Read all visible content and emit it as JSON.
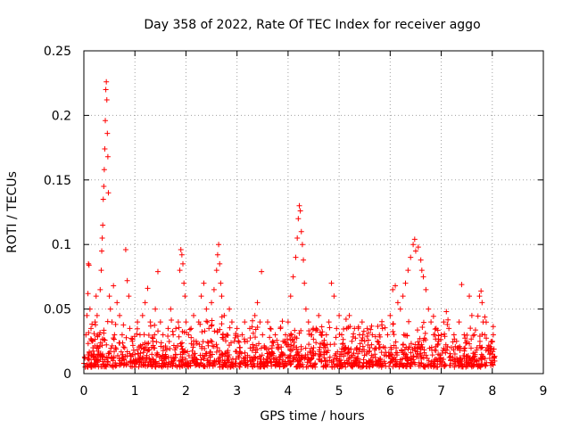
{
  "chart_data": {
    "type": "scatter",
    "title": "Day 358 of 2022, Rate Of TEC Index for receiver aggo",
    "xlabel": "GPS time / hours",
    "ylabel": "ROTI / TECUs",
    "xlim": [
      0,
      9
    ],
    "ylim": [
      0,
      0.25
    ],
    "xticks": [
      0,
      1,
      2,
      3,
      4,
      5,
      6,
      7,
      8,
      9
    ],
    "xtick_labels": [
      "0",
      "1",
      "2",
      "3",
      "4",
      "5",
      "6",
      "7",
      "8",
      "9"
    ],
    "yticks": [
      0,
      0.05,
      0.1,
      0.15,
      0.2,
      0.25
    ],
    "ytick_labels": [
      "0",
      "0.05",
      "0.1",
      "0.15",
      "0.2",
      "0.25"
    ],
    "grid": true,
    "marker": "+",
    "color": "#ff0000",
    "series": [
      {
        "name": "ROTI",
        "points": [
          [
            0.02,
            0.012
          ],
          [
            0.04,
            0.03
          ],
          [
            0.06,
            0.045
          ],
          [
            0.08,
            0.062
          ],
          [
            0.09,
            0.085
          ],
          [
            0.1,
            0.084
          ],
          [
            0.12,
            0.05
          ],
          [
            0.14,
            0.035
          ],
          [
            0.16,
            0.025
          ],
          [
            0.18,
            0.02
          ],
          [
            0.2,
            0.015
          ],
          [
            0.22,
            0.04
          ],
          [
            0.24,
            0.06
          ],
          [
            0.26,
            0.045
          ],
          [
            0.28,
            0.02
          ],
          [
            0.3,
            0.03
          ],
          [
            0.32,
            0.065
          ],
          [
            0.34,
            0.08
          ],
          [
            0.35,
            0.095
          ],
          [
            0.36,
            0.105
          ],
          [
            0.37,
            0.115
          ],
          [
            0.38,
            0.135
          ],
          [
            0.39,
            0.145
          ],
          [
            0.4,
            0.158
          ],
          [
            0.41,
            0.174
          ],
          [
            0.42,
            0.196
          ],
          [
            0.43,
            0.22
          ],
          [
            0.44,
            0.226
          ],
          [
            0.45,
            0.212
          ],
          [
            0.46,
            0.186
          ],
          [
            0.47,
            0.168
          ],
          [
            0.48,
            0.14
          ],
          [
            0.5,
            0.06
          ],
          [
            0.52,
            0.05
          ],
          [
            0.55,
            0.04
          ],
          [
            0.58,
            0.068
          ],
          [
            0.6,
            0.03
          ],
          [
            0.62,
            0.02
          ],
          [
            0.65,
            0.055
          ],
          [
            0.7,
            0.045
          ],
          [
            0.75,
            0.03
          ],
          [
            0.8,
            0.02
          ],
          [
            0.82,
            0.096
          ],
          [
            0.85,
            0.072
          ],
          [
            0.88,
            0.06
          ],
          [
            0.9,
            0.035
          ],
          [
            0.95,
            0.025
          ],
          [
            1.0,
            0.015
          ],
          [
            1.05,
            0.04
          ],
          [
            1.1,
            0.03
          ],
          [
            1.15,
            0.045
          ],
          [
            1.2,
            0.055
          ],
          [
            1.25,
            0.066
          ],
          [
            1.3,
            0.04
          ],
          [
            1.35,
            0.025
          ],
          [
            1.4,
            0.05
          ],
          [
            1.45,
            0.079
          ],
          [
            1.5,
            0.04
          ],
          [
            1.55,
            0.03
          ],
          [
            1.6,
            0.02
          ],
          [
            1.65,
            0.035
          ],
          [
            1.7,
            0.05
          ],
          [
            1.75,
            0.03
          ],
          [
            1.8,
            0.02
          ],
          [
            1.85,
            0.04
          ],
          [
            1.88,
            0.08
          ],
          [
            1.9,
            0.096
          ],
          [
            1.92,
            0.092
          ],
          [
            1.94,
            0.085
          ],
          [
            1.96,
            0.07
          ],
          [
            1.98,
            0.06
          ],
          [
            2.0,
            0.04
          ],
          [
            2.05,
            0.03
          ],
          [
            2.1,
            0.035
          ],
          [
            2.15,
            0.045
          ],
          [
            2.2,
            0.025
          ],
          [
            2.25,
            0.04
          ],
          [
            2.3,
            0.06
          ],
          [
            2.35,
            0.07
          ],
          [
            2.4,
            0.05
          ],
          [
            2.45,
            0.035
          ],
          [
            2.5,
            0.055
          ],
          [
            2.55,
            0.065
          ],
          [
            2.6,
            0.08
          ],
          [
            2.62,
            0.092
          ],
          [
            2.64,
            0.1
          ],
          [
            2.66,
            0.085
          ],
          [
            2.68,
            0.07
          ],
          [
            2.7,
            0.06
          ],
          [
            2.75,
            0.045
          ],
          [
            2.8,
            0.03
          ],
          [
            2.85,
            0.05
          ],
          [
            2.9,
            0.04
          ],
          [
            2.95,
            0.025
          ],
          [
            3.0,
            0.035
          ],
          [
            3.05,
            0.02
          ],
          [
            3.1,
            0.03
          ],
          [
            3.15,
            0.04
          ],
          [
            3.2,
            0.025
          ],
          [
            3.25,
            0.035
          ],
          [
            3.3,
            0.02
          ],
          [
            3.35,
            0.045
          ],
          [
            3.4,
            0.055
          ],
          [
            3.45,
            0.04
          ],
          [
            3.48,
            0.079
          ],
          [
            3.5,
            0.03
          ],
          [
            3.55,
            0.02
          ],
          [
            3.6,
            0.04
          ],
          [
            3.65,
            0.035
          ],
          [
            3.7,
            0.025
          ],
          [
            3.75,
            0.03
          ],
          [
            3.8,
            0.02
          ],
          [
            3.85,
            0.035
          ],
          [
            3.9,
            0.025
          ],
          [
            3.95,
            0.03
          ],
          [
            4.0,
            0.04
          ],
          [
            4.05,
            0.06
          ],
          [
            4.1,
            0.075
          ],
          [
            4.15,
            0.09
          ],
          [
            4.18,
            0.105
          ],
          [
            4.2,
            0.12
          ],
          [
            4.22,
            0.13
          ],
          [
            4.24,
            0.126
          ],
          [
            4.26,
            0.11
          ],
          [
            4.28,
            0.1
          ],
          [
            4.3,
            0.088
          ],
          [
            4.32,
            0.07
          ],
          [
            4.35,
            0.05
          ],
          [
            4.4,
            0.04
          ],
          [
            4.45,
            0.03
          ],
          [
            4.5,
            0.02
          ],
          [
            4.55,
            0.035
          ],
          [
            4.6,
            0.045
          ],
          [
            4.65,
            0.03
          ],
          [
            4.7,
            0.02
          ],
          [
            4.75,
            0.03
          ],
          [
            4.8,
            0.04
          ],
          [
            4.85,
            0.07
          ],
          [
            4.9,
            0.06
          ],
          [
            4.95,
            0.035
          ],
          [
            5.0,
            0.045
          ],
          [
            5.05,
            0.03
          ],
          [
            5.1,
            0.02
          ],
          [
            5.15,
            0.035
          ],
          [
            5.2,
            0.045
          ],
          [
            5.25,
            0.025
          ],
          [
            5.3,
            0.035
          ],
          [
            5.35,
            0.02
          ],
          [
            5.4,
            0.03
          ],
          [
            5.45,
            0.04
          ],
          [
            5.5,
            0.025
          ],
          [
            5.55,
            0.035
          ],
          [
            5.6,
            0.02
          ],
          [
            5.65,
            0.03
          ],
          [
            5.7,
            0.015
          ],
          [
            5.75,
            0.025
          ],
          [
            5.8,
            0.02
          ],
          [
            5.85,
            0.035
          ],
          [
            5.9,
            0.02
          ],
          [
            5.95,
            0.03
          ],
          [
            6.0,
            0.045
          ],
          [
            6.05,
            0.065
          ],
          [
            6.1,
            0.068
          ],
          [
            6.15,
            0.055
          ],
          [
            6.2,
            0.05
          ],
          [
            6.25,
            0.06
          ],
          [
            6.3,
            0.07
          ],
          [
            6.35,
            0.08
          ],
          [
            6.4,
            0.09
          ],
          [
            6.45,
            0.1
          ],
          [
            6.48,
            0.104
          ],
          [
            6.5,
            0.095
          ],
          [
            6.55,
            0.098
          ],
          [
            6.6,
            0.088
          ],
          [
            6.62,
            0.08
          ],
          [
            6.65,
            0.075
          ],
          [
            6.7,
            0.065
          ],
          [
            6.75,
            0.05
          ],
          [
            6.8,
            0.04
          ],
          [
            6.85,
            0.03
          ],
          [
            6.9,
            0.035
          ],
          [
            6.95,
            0.025
          ],
          [
            7.0,
            0.03
          ],
          [
            7.05,
            0.04
          ],
          [
            7.1,
            0.048
          ],
          [
            7.15,
            0.035
          ],
          [
            7.2,
            0.02
          ],
          [
            7.25,
            0.03
          ],
          [
            7.3,
            0.025
          ],
          [
            7.35,
            0.04
          ],
          [
            7.4,
            0.069
          ],
          [
            7.45,
            0.03
          ],
          [
            7.5,
            0.025
          ],
          [
            7.55,
            0.06
          ],
          [
            7.6,
            0.045
          ],
          [
            7.65,
            0.03
          ],
          [
            7.7,
            0.02
          ],
          [
            7.75,
            0.06
          ],
          [
            7.78,
            0.064
          ],
          [
            7.8,
            0.055
          ],
          [
            7.82,
            0.04
          ],
          [
            7.85,
            0.03
          ],
          [
            7.9,
            0.02
          ],
          [
            7.95,
            0.015
          ],
          [
            8.0,
            0.025
          ],
          [
            8.02,
            0.03
          ],
          [
            8.04,
            0.012
          ]
        ]
      }
    ],
    "dense_band": {
      "x_range": [
        0.0,
        8.05
      ],
      "y_min": 0.005,
      "y_max": 0.045,
      "count": 1400,
      "note": "dense cloud of ROTI values between roughly 0.005 and 0.045 TECUs across the whole time range"
    }
  }
}
